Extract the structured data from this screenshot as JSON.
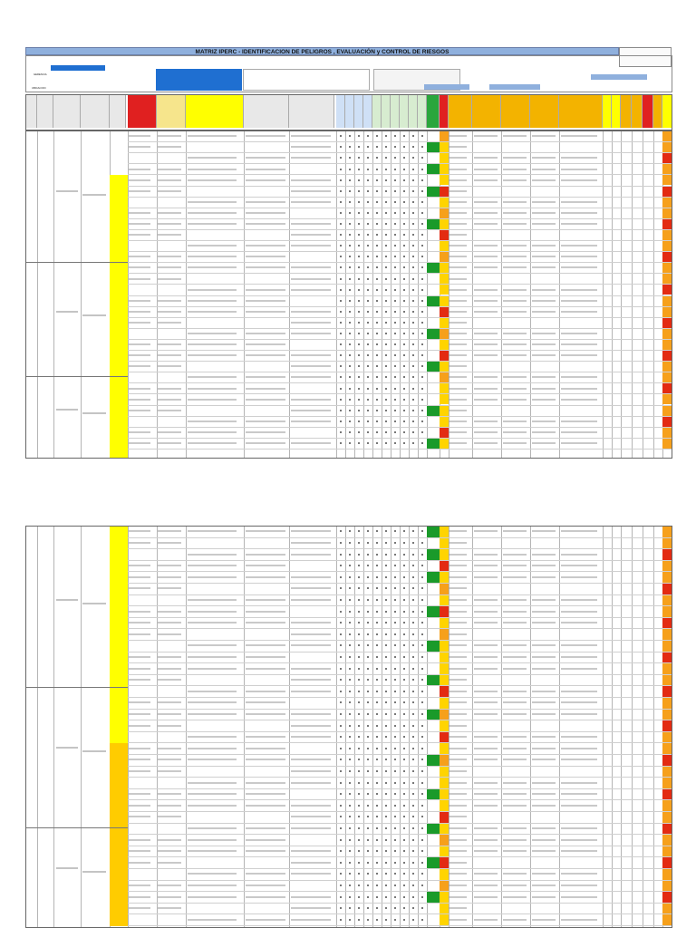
{
  "document": {
    "title": "MATRIZ IPERC - IDENTIFICACION DE PELIGROS , EVALUACIÓN y CONTROL DE RIESGOS",
    "header": {
      "left_label_1": "GERENCIA",
      "left_label_2": "UBICACION",
      "center_box_label": "",
      "right_label_1": "",
      "right_label_2": "",
      "right_label_3": ""
    },
    "footer_left": "",
    "footer_right": ""
  },
  "colors": {
    "title_blue": "#8fb0dd",
    "header_blue": "#1f6fd1",
    "header_grey": "#c9c9c9",
    "activity_yellow": "#ffff00",
    "activity_orange": "#ffcc00",
    "risk_red": "#e32b12",
    "risk_green": "#1a9a2a",
    "risk_orange": "#f6a01b",
    "risk_yellow": "#ffd400",
    "hdr_red": "#e02020",
    "hdr_orange": "#f3b300",
    "hdr_green": "#2aa63c"
  }
}
